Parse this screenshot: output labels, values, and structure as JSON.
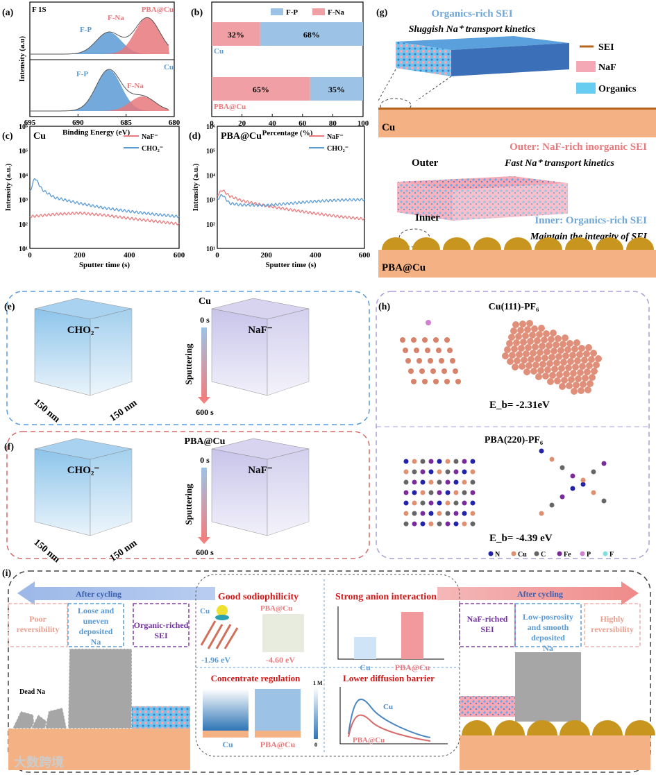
{
  "panel_labels": {
    "a": "(a)",
    "b": "(b)",
    "c": "(c)",
    "d": "(d)",
    "e": "(e)",
    "f": "(f)",
    "g": "(g)",
    "h": "(h)",
    "i": "(i)"
  },
  "colors": {
    "blue": "#5b9bd5",
    "red": "#e8797c",
    "sei_line": "#b5651d",
    "naf": "#f4a7b5",
    "organics": "#66ccf0",
    "substrate": "#f4b183",
    "gold": "#c8961e"
  },
  "chart_data": [
    {
      "id": "a",
      "type": "line",
      "title": "F 1S",
      "xlabel": "Binding Energy (eV)",
      "ylabel": "Intensity (a.u)",
      "xlim": [
        695,
        680
      ],
      "xticks": [
        "695",
        "690",
        "685",
        "680"
      ],
      "panels": [
        {
          "name": "PBA@Cu",
          "peaks": [
            {
              "label": "F-P",
              "center": 686.8,
              "rel_height": 0.45
            },
            {
              "label": "F-Na",
              "center": 682.8,
              "rel_height": 0.75
            }
          ]
        },
        {
          "name": "Cu",
          "peaks": [
            {
              "label": "F-P",
              "center": 686.8,
              "rel_height": 0.85
            },
            {
              "label": "F-Na",
              "center": 683.3,
              "rel_height": 0.3
            }
          ]
        }
      ]
    },
    {
      "id": "b",
      "type": "bar",
      "xlabel": "Percentage (%)",
      "xlim": [
        0,
        100
      ],
      "xticks": [
        "0",
        "20",
        "40",
        "60",
        "80",
        "100"
      ],
      "legend": [
        "F-P",
        "F-Na"
      ],
      "categories": [
        "Cu",
        "PBA@Cu"
      ],
      "series": [
        {
          "name": "F-Na",
          "values": [
            32,
            65
          ],
          "labels": [
            "32%",
            "65%"
          ]
        },
        {
          "name": "F-P",
          "values": [
            68,
            35
          ],
          "labels": [
            "68%",
            "35%"
          ]
        }
      ]
    },
    {
      "id": "c",
      "type": "line",
      "title": "Cu",
      "xlabel": "Sputter time (s)",
      "ylabel": "Intensity (a.u.)",
      "xlim": [
        0,
        600
      ],
      "ylim_log10": [
        1,
        6
      ],
      "xticks": [
        "0",
        "200",
        "400",
        "600"
      ],
      "yticks": [
        "10¹",
        "10²",
        "10³",
        "10⁴",
        "10⁵",
        "10⁶"
      ],
      "legend": [
        "NaF⁻",
        "CHO₂⁻"
      ],
      "series": [
        {
          "name": "NaF⁻",
          "x": [
            0,
            100,
            200,
            300,
            400,
            500,
            600
          ],
          "y": [
            200,
            250,
            280,
            230,
            170,
            130,
            100
          ]
        },
        {
          "name": "CHO₂⁻",
          "x": [
            0,
            20,
            50,
            100,
            200,
            300,
            400,
            500,
            600
          ],
          "y": [
            2000,
            8000,
            2500,
            1200,
            700,
            450,
            330,
            250,
            200
          ]
        }
      ]
    },
    {
      "id": "d",
      "type": "line",
      "title": "PBA@Cu",
      "xlabel": "Sputter time (s)",
      "ylabel": "Intensity (a.u.)",
      "xlim": [
        0,
        600
      ],
      "ylim_log10": [
        1,
        6
      ],
      "xticks": [
        "0",
        "200",
        "400",
        "600"
      ],
      "yticks": [
        "10¹",
        "10²",
        "10³",
        "10⁴",
        "10⁵",
        "10⁶"
      ],
      "legend": [
        "NaF⁻",
        "CHO₂⁻"
      ],
      "series": [
        {
          "name": "NaF⁻",
          "x": [
            0,
            20,
            50,
            100,
            200,
            300,
            400,
            500,
            600
          ],
          "y": [
            1500,
            2500,
            1400,
            900,
            550,
            380,
            270,
            200,
            160
          ]
        },
        {
          "name": "CHO₂⁻",
          "x": [
            0,
            20,
            50,
            100,
            200,
            300,
            400,
            500,
            600
          ],
          "y": [
            1000,
            1600,
            700,
            600,
            580,
            700,
            850,
            950,
            1000
          ]
        }
      ]
    }
  ],
  "g": {
    "top_title": "Organics-rich SEI",
    "top_sub": "Sluggish Na⁺ transport kinetics",
    "legend": [
      "SEI",
      "NaF",
      "Organics"
    ],
    "cu": "Cu",
    "outer_title": "Outer: NaF-rich inorganic SEI",
    "outer_sub": "Fast Na⁺ transport kinetics",
    "outer": "Outer",
    "inner": "Inner",
    "inner_title": "Inner: Organics-rich  SEI",
    "inner_sub": "Maintain the integrity of SEI",
    "pba": "PBA@Cu"
  },
  "e": {
    "label": "Cu",
    "species1": "CHO₂⁻",
    "species2": "NaF⁻",
    "dim1": "150 nm",
    "dim2": "150 nm",
    "t0": "0 s",
    "t1": "600 s",
    "sputtering": "Sputtering"
  },
  "f": {
    "label": "PBA@Cu",
    "species1": "CHO₂⁻",
    "species2": "NaF⁻",
    "dim1": "150 nm",
    "dim2": "150 nm",
    "t0": "0 s",
    "t1": "600 s",
    "sputtering": "Sputtering"
  },
  "h": {
    "title1": "Cu(111)-PF₆",
    "eb1": "E_b= -2.31eV",
    "title2": "PBA(220)-PF₆",
    "eb2": "E_b= -4.39 eV",
    "legend": [
      {
        "label": "N",
        "color": "#2222aa"
      },
      {
        "label": "Cu",
        "color": "#e09070"
      },
      {
        "label": "C",
        "color": "#666666"
      },
      {
        "label": "Fe",
        "color": "#7a2a9a"
      },
      {
        "label": "P",
        "color": "#d080d0"
      },
      {
        "label": "F",
        "color": "#80e0e0"
      }
    ]
  },
  "i": {
    "after_left": "After cycling",
    "after_right": "After cycling",
    "left_boxes": [
      "Poor reversibility",
      "Loose and uneven deposited Na",
      "Organic-riched SEI"
    ],
    "right_boxes": [
      "NaF-riched SEI",
      "Low-posrosity and smooth deposited Na",
      "Highly reversibility"
    ],
    "dead_na": "Dead Na",
    "q1": {
      "title": "Good sodiophilicity",
      "cu": "Cu",
      "pba": "PBA@Cu",
      "e1": "-1.96 eV",
      "e2": "-4.60 eV"
    },
    "q2": {
      "title": "Strong anion interaction",
      "cu": "Cu",
      "pba": "PBA@Cu"
    },
    "q3": {
      "title": "Concentrate regulation",
      "cu": "Cu",
      "pba": "PBA@Cu",
      "max": "1 M",
      "min": "0"
    },
    "q4": {
      "title": "Lower diffusion barrier",
      "cu": "Cu",
      "pba": "PBA@Cu"
    },
    "watermark": "大数跨境"
  }
}
